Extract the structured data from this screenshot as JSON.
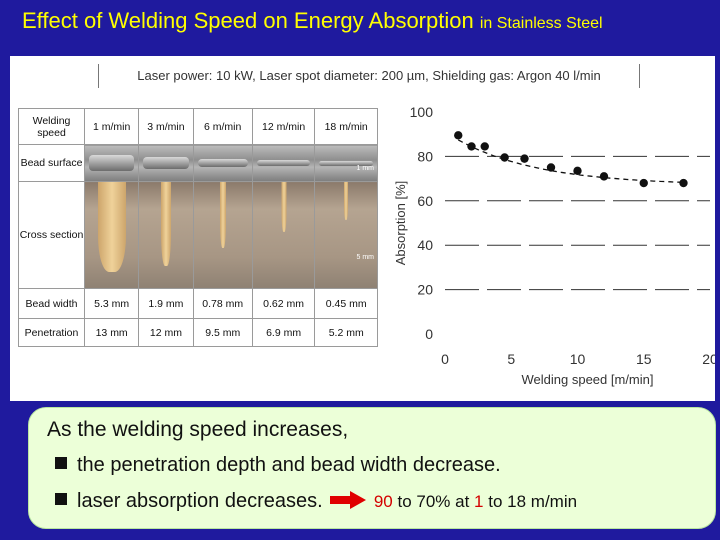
{
  "title": {
    "main": "Effect of Welding Speed on Energy Absorption",
    "sub": "in Stainless Steel"
  },
  "conditions": "Laser power: 10 kW, Laser spot diameter: 200 µm, Shielding gas: Argon 40 l/min",
  "table": {
    "speed_label": "Welding speed",
    "bead_label": "Bead surface",
    "cross_label": "Cross section",
    "width_label": "Bead width",
    "penetration_label": "Penetration",
    "speeds": [
      "1 m/min",
      "3 m/min",
      "6 m/min",
      "12 m/min",
      "18 m/min"
    ],
    "bead_widths": [
      "5.3 mm",
      "1.9 mm",
      "0.78 mm",
      "0.62 mm",
      "0.45 mm"
    ],
    "penetrations": [
      "13 mm",
      "12 mm",
      "9.5 mm",
      "6.9 mm",
      "5.2 mm"
    ],
    "scale_bead": "1 mm",
    "scale_cross": "5 mm"
  },
  "chart_data": {
    "type": "scatter",
    "x": [
      1,
      2,
      3,
      4.5,
      6,
      8,
      10,
      12,
      15,
      18
    ],
    "y": [
      89.5,
      84.5,
      84.5,
      79.5,
      79,
      75,
      73.5,
      71,
      68,
      68
    ],
    "trend": "dashed curve",
    "xlabel": "Welding speed [m/min]",
    "ylabel": "Absorption [%]",
    "xlim": [
      0,
      20
    ],
    "ylim": [
      0,
      100
    ],
    "xticks": [
      "0",
      "5",
      "10",
      "15",
      "20"
    ],
    "yticks": [
      "0",
      "20",
      "40",
      "60",
      "80",
      "100"
    ],
    "grid": "dashed horizontal"
  },
  "summary": {
    "lead": "As the welding speed increases,",
    "point1": "the penetration depth and bead width decrease.",
    "point2": "laser absorption decreases.",
    "from_value": "90",
    "mid_text": "to 70% at",
    "from_speed": "1",
    "to_text": "to 18 m/min"
  },
  "colors": {
    "background": "#1f1a9e",
    "title": "#ffff00",
    "highlight": "#d40000",
    "summary_bg": "#ecffd8"
  }
}
